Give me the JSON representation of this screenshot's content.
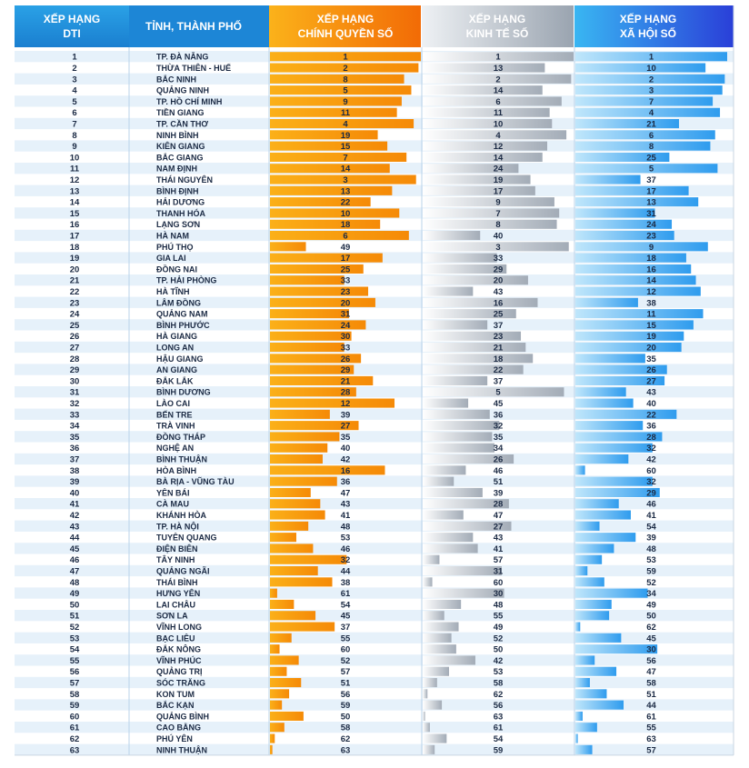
{
  "headers": {
    "rank": [
      "XẾP HẠNG",
      "DTI"
    ],
    "province": "TỈNH, THÀNH PHỐ",
    "government": [
      "XẾP HẠNG",
      "CHÍNH QUYỀN SỐ"
    ],
    "economy": [
      "XẾP HẠNG",
      "KINH TẾ SỐ"
    ],
    "society": [
      "XẾP HẠNG",
      "XÃ HỘI SỐ"
    ]
  },
  "colors": {
    "header_rank": "#1f8ed8",
    "header_gov": "#f58a07",
    "header_econ": "#a6aeb8",
    "header_soc": "#2656e0",
    "stripe": "#e6f1fa",
    "bar_gov": "#f79a10",
    "bar_econ": "#b5bcc5",
    "bar_soc": "#3aa0ec"
  },
  "chart_data": {
    "type": "bar",
    "max_rank": 63,
    "rows": [
      {
        "rank": "1",
        "province": "TP. ĐÀ NẴNG",
        "gov": 1,
        "econ": 1,
        "soc": 1
      },
      {
        "rank": "2",
        "province": "THỪA THIÊN - HUẾ",
        "gov": 2,
        "econ": 13,
        "soc": 10
      },
      {
        "rank": "3",
        "province": "BẮC NINH",
        "gov": 8,
        "econ": 2,
        "soc": 2
      },
      {
        "rank": "4",
        "province": "QUẢNG NINH",
        "gov": 5,
        "econ": 14,
        "soc": 3
      },
      {
        "rank": "5",
        "province": "TP. HỒ CHÍ MINH",
        "gov": 9,
        "econ": 6,
        "soc": 7
      },
      {
        "rank": "6",
        "province": "TIỀN GIANG",
        "gov": 11,
        "econ": 11,
        "soc": 4
      },
      {
        "rank": "7",
        "province": "TP. CẦN THƠ",
        "gov": 4,
        "econ": 10,
        "soc": 21
      },
      {
        "rank": "8",
        "province": "NINH BÌNH",
        "gov": 19,
        "econ": 4,
        "soc": 6
      },
      {
        "rank": "9",
        "province": "KIÊN GIANG",
        "gov": 15,
        "econ": 12,
        "soc": 8
      },
      {
        "rank": "10",
        "province": "BẮC GIANG",
        "gov": 7,
        "econ": 14,
        "soc": 25
      },
      {
        "rank": "11",
        "province": "NAM ĐỊNH",
        "gov": 14,
        "econ": 24,
        "soc": 5
      },
      {
        "rank": "12",
        "province": "THÁI NGUYÊN",
        "gov": 3,
        "econ": 19,
        "soc": 37
      },
      {
        "rank": "13",
        "province": "BÌNH ĐỊNH",
        "gov": 13,
        "econ": 17,
        "soc": 17
      },
      {
        "rank": "14",
        "province": "HẢI DƯƠNG",
        "gov": 22,
        "econ": 9,
        "soc": 13
      },
      {
        "rank": "15",
        "province": "THANH HÓA",
        "gov": 10,
        "econ": 7,
        "soc": 31
      },
      {
        "rank": "16",
        "province": "LẠNG SƠN",
        "gov": 18,
        "econ": 8,
        "soc": 24
      },
      {
        "rank": "17",
        "province": "HÀ NAM",
        "gov": 6,
        "econ": 40,
        "soc": 23
      },
      {
        "rank": "18",
        "province": "PHÚ THỌ",
        "gov": 49,
        "econ": 3,
        "soc": 9
      },
      {
        "rank": "19",
        "province": "GIA LAI",
        "gov": 17,
        "econ": 33,
        "soc": 18
      },
      {
        "rank": "20",
        "province": "ĐỒNG NAI",
        "gov": 25,
        "econ": 29,
        "soc": 16
      },
      {
        "rank": "21",
        "province": "TP. HẢI PHÒNG",
        "gov": 33,
        "econ": 20,
        "soc": 14
      },
      {
        "rank": "22",
        "province": "HÀ TĨNH",
        "gov": 23,
        "econ": 43,
        "soc": 12
      },
      {
        "rank": "23",
        "province": "LÂM ĐỒNG",
        "gov": 20,
        "econ": 16,
        "soc": 38
      },
      {
        "rank": "24",
        "province": "QUẢNG NAM",
        "gov": 31,
        "econ": 25,
        "soc": 11
      },
      {
        "rank": "25",
        "province": "BÌNH PHƯỚC",
        "gov": 24,
        "econ": 37,
        "soc": 15
      },
      {
        "rank": "26",
        "province": "HÀ GIANG",
        "gov": 30,
        "econ": 23,
        "soc": 19
      },
      {
        "rank": "27",
        "province": "LONG AN",
        "gov": 33,
        "econ": 21,
        "soc": 20
      },
      {
        "rank": "28",
        "province": "HẬU GIANG",
        "gov": 26,
        "econ": 18,
        "soc": 35
      },
      {
        "rank": "29",
        "province": "AN GIANG",
        "gov": 29,
        "econ": 22,
        "soc": 26
      },
      {
        "rank": "30",
        "province": "ĐẮK LẮK",
        "gov": 21,
        "econ": 37,
        "soc": 27
      },
      {
        "rank": "31",
        "province": "BÌNH DƯƠNG",
        "gov": 28,
        "econ": 5,
        "soc": 43
      },
      {
        "rank": "32",
        "province": "LÀO CAI",
        "gov": 12,
        "econ": 45,
        "soc": 40
      },
      {
        "rank": "33",
        "province": "BẾN TRE",
        "gov": 39,
        "econ": 36,
        "soc": 22
      },
      {
        "rank": "34",
        "province": "TRÀ VINH",
        "gov": 27,
        "econ": 32,
        "soc": 36
      },
      {
        "rank": "35",
        "province": "ĐỒNG THÁP",
        "gov": 35,
        "econ": 35,
        "soc": 28
      },
      {
        "rank": "36",
        "province": "NGHỆ AN",
        "gov": 40,
        "econ": 34,
        "soc": 32
      },
      {
        "rank": "37",
        "province": "BÌNH THUẬN",
        "gov": 42,
        "econ": 26,
        "soc": 42
      },
      {
        "rank": "38",
        "province": "HÒA BÌNH",
        "gov": 16,
        "econ": 46,
        "soc": 60
      },
      {
        "rank": "39",
        "province": "BÀ RỊA - VŨNG TÀU",
        "gov": 36,
        "econ": 51,
        "soc": 32
      },
      {
        "rank": "40",
        "province": "YÊN BÁI",
        "gov": 47,
        "econ": 39,
        "soc": 29
      },
      {
        "rank": "41",
        "province": "CÀ MAU",
        "gov": 43,
        "econ": 28,
        "soc": 46
      },
      {
        "rank": "42",
        "province": "KHÁNH HÒA",
        "gov": 41,
        "econ": 47,
        "soc": 41
      },
      {
        "rank": "43",
        "province": "TP. HÀ NỘI",
        "gov": 48,
        "econ": 27,
        "soc": 54
      },
      {
        "rank": "44",
        "province": "TUYÊN QUANG",
        "gov": 53,
        "econ": 43,
        "soc": 39
      },
      {
        "rank": "45",
        "province": "ĐIỆN BIÊN",
        "gov": 46,
        "econ": 41,
        "soc": 48
      },
      {
        "rank": "46",
        "province": "TÂY NINH",
        "gov": 32,
        "econ": 57,
        "soc": 53
      },
      {
        "rank": "47",
        "province": "QUẢNG NGÃI",
        "gov": 44,
        "econ": 31,
        "soc": 59
      },
      {
        "rank": "48",
        "province": "THÁI BÌNH",
        "gov": 38,
        "econ": 60,
        "soc": 52
      },
      {
        "rank": "49",
        "province": "HƯNG YÊN",
        "gov": 61,
        "econ": 30,
        "soc": 34
      },
      {
        "rank": "50",
        "province": "LAI CHÂU",
        "gov": 54,
        "econ": 48,
        "soc": 49
      },
      {
        "rank": "51",
        "province": "SƠN LA",
        "gov": 45,
        "econ": 55,
        "soc": 50
      },
      {
        "rank": "52",
        "province": "VĨNH LONG",
        "gov": 37,
        "econ": 49,
        "soc": 62
      },
      {
        "rank": "53",
        "province": "BẠC LIÊU",
        "gov": 55,
        "econ": 52,
        "soc": 45
      },
      {
        "rank": "54",
        "province": "ĐẮK NÔNG",
        "gov": 60,
        "econ": 50,
        "soc": 30
      },
      {
        "rank": "55",
        "province": "VĨNH PHÚC",
        "gov": 52,
        "econ": 42,
        "soc": 56
      },
      {
        "rank": "56",
        "province": "QUẢNG TRỊ",
        "gov": 57,
        "econ": 53,
        "soc": 47
      },
      {
        "rank": "57",
        "province": "SÓC TRĂNG",
        "gov": 51,
        "econ": 58,
        "soc": 58
      },
      {
        "rank": "58",
        "province": "KON TUM",
        "gov": 56,
        "econ": 62,
        "soc": 51
      },
      {
        "rank": "59",
        "province": "BẮC KẠN",
        "gov": 59,
        "econ": 56,
        "soc": 44
      },
      {
        "rank": "60",
        "province": "QUẢNG BÌNH",
        "gov": 50,
        "econ": 63,
        "soc": 61
      },
      {
        "rank": "61",
        "province": "CAO BẰNG",
        "gov": 58,
        "econ": 61,
        "soc": 55
      },
      {
        "rank": "62",
        "province": "PHÚ YÊN",
        "gov": 62,
        "econ": 54,
        "soc": 63
      },
      {
        "rank": "63",
        "province": "NINH THUẬN",
        "gov": 63,
        "econ": 59,
        "soc": 57
      }
    ]
  }
}
